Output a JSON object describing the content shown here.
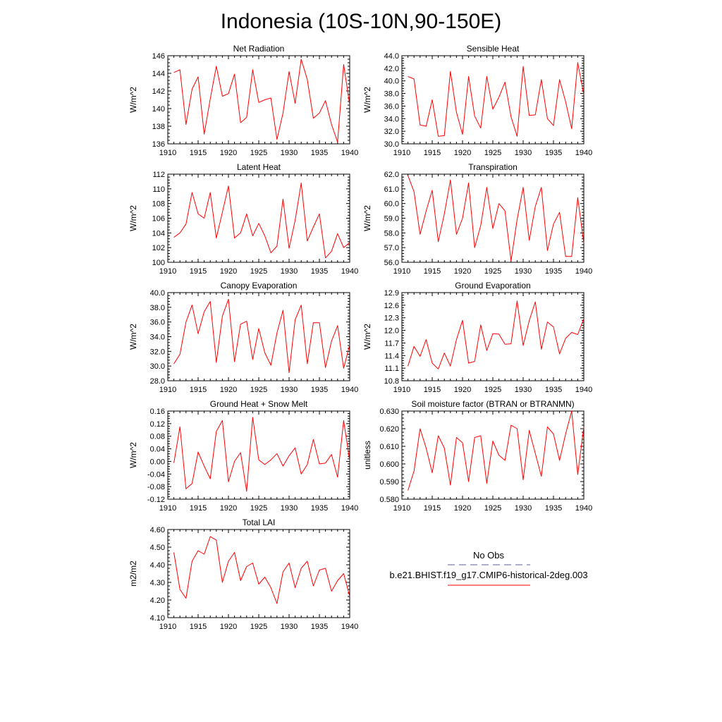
{
  "title": "Indonesia (10S-10N,90-150E)",
  "colors": {
    "series": "#ff0000",
    "obs": "#5a5a9a",
    "axis": "#000000"
  },
  "legend": {
    "obs_label": "No Obs",
    "model_label": "b.e21.BHIST.f19_g17.CMIP6-historical-2deg.003"
  },
  "chart_data": [
    {
      "type": "line",
      "title": "Net Radiation",
      "ylabel": "W/m^2",
      "xlim": [
        1910,
        1940
      ],
      "ylim": [
        136,
        146
      ],
      "decimals": 0,
      "xticks": [
        1910,
        1915,
        1920,
        1925,
        1930,
        1935,
        1940
      ],
      "yticks": [
        136,
        138,
        140,
        142,
        144,
        146
      ],
      "x": [
        1911,
        1912,
        1913,
        1914,
        1915,
        1916,
        1917,
        1918,
        1919,
        1920,
        1921,
        1922,
        1923,
        1924,
        1925,
        1926,
        1927,
        1928,
        1929,
        1930,
        1931,
        1932,
        1933,
        1934,
        1935,
        1936,
        1937,
        1938,
        1939,
        1940
      ],
      "values": [
        144.1,
        144.4,
        138.2,
        142.2,
        143.6,
        137.1,
        141.1,
        144.8,
        141.4,
        141.7,
        143.9,
        138.4,
        139.0,
        144.4,
        140.7,
        141.0,
        141.2,
        136.5,
        139.5,
        144.2,
        140.6,
        145.6,
        143.3,
        138.9,
        139.5,
        140.9,
        138.2,
        136.2,
        145.0,
        140.4
      ],
      "series": [
        {
          "name": "b.e21.BHIST.f19_g17.CMIP6-historical-2deg.003"
        }
      ]
    },
    {
      "type": "line",
      "title": "Sensible Heat",
      "ylabel": "W/m^2",
      "xlim": [
        1910,
        1940
      ],
      "ylim": [
        30,
        44
      ],
      "decimals": 1,
      "xticks": [
        1910,
        1915,
        1920,
        1925,
        1930,
        1935,
        1940
      ],
      "yticks": [
        30,
        32,
        34,
        36,
        38,
        40,
        42,
        44
      ],
      "x": [
        1911,
        1912,
        1913,
        1914,
        1915,
        1916,
        1917,
        1918,
        1919,
        1920,
        1921,
        1922,
        1923,
        1924,
        1925,
        1926,
        1927,
        1928,
        1929,
        1930,
        1931,
        1932,
        1933,
        1934,
        1935,
        1936,
        1937,
        1938,
        1939,
        1940
      ],
      "values": [
        40.7,
        40.3,
        33.0,
        32.8,
        37.0,
        31.2,
        31.3,
        41.5,
        35.0,
        31.5,
        40.7,
        34.4,
        32.5,
        40.7,
        35.5,
        37.4,
        39.8,
        34.3,
        31.2,
        42.3,
        34.5,
        34.6,
        40.2,
        34.0,
        32.9,
        40.2,
        36.7,
        32.4,
        42.9,
        37.8
      ],
      "series": [
        {
          "name": "b.e21.BHIST.f19_g17.CMIP6-historical-2deg.003"
        }
      ]
    },
    {
      "type": "line",
      "title": "Latent Heat",
      "ylabel": "W/m^2",
      "xlim": [
        1910,
        1940
      ],
      "ylim": [
        100,
        112
      ],
      "decimals": 0,
      "xticks": [
        1910,
        1915,
        1920,
        1925,
        1930,
        1935,
        1940
      ],
      "yticks": [
        100,
        102,
        104,
        106,
        108,
        110,
        112
      ],
      "x": [
        1911,
        1912,
        1913,
        1914,
        1915,
        1916,
        1917,
        1918,
        1919,
        1920,
        1921,
        1922,
        1923,
        1924,
        1925,
        1926,
        1927,
        1928,
        1929,
        1930,
        1931,
        1932,
        1933,
        1934,
        1935,
        1936,
        1937,
        1938,
        1939,
        1940
      ],
      "values": [
        103.4,
        104.0,
        105.2,
        109.5,
        106.6,
        106.0,
        109.5,
        103.3,
        106.8,
        110.4,
        103.3,
        104.0,
        106.6,
        103.6,
        105.3,
        103.6,
        101.3,
        102.2,
        108.6,
        101.9,
        105.7,
        110.8,
        102.9,
        104.8,
        106.6,
        100.6,
        101.5,
        103.9,
        102.0,
        102.7
      ],
      "series": [
        {
          "name": "b.e21.BHIST.f19_g17.CMIP6-historical-2deg.003"
        }
      ]
    },
    {
      "type": "line",
      "title": "Transpiration",
      "ylabel": "W/m^2",
      "xlim": [
        1910,
        1940
      ],
      "ylim": [
        56,
        62
      ],
      "decimals": 1,
      "xticks": [
        1910,
        1915,
        1920,
        1925,
        1930,
        1935,
        1940
      ],
      "yticks": [
        56,
        57,
        58,
        59,
        60,
        61,
        62
      ],
      "x": [
        1911,
        1912,
        1913,
        1914,
        1915,
        1916,
        1917,
        1918,
        1919,
        1920,
        1921,
        1922,
        1923,
        1924,
        1925,
        1926,
        1927,
        1928,
        1929,
        1930,
        1931,
        1932,
        1933,
        1934,
        1935,
        1936,
        1937,
        1938,
        1939,
        1940
      ],
      "values": [
        61.9,
        60.8,
        57.9,
        59.5,
        60.9,
        57.4,
        59.3,
        61.6,
        57.9,
        59.0,
        61.4,
        57.0,
        58.5,
        61.1,
        58.3,
        60.0,
        59.5,
        56.1,
        58.9,
        61.1,
        57.5,
        59.8,
        61.1,
        56.8,
        58.6,
        59.4,
        56.4,
        56.4,
        60.4,
        57.3
      ],
      "series": [
        {
          "name": "b.e21.BHIST.f19_g17.CMIP6-historical-2deg.003"
        }
      ]
    },
    {
      "type": "line",
      "title": "Canopy Evaporation",
      "ylabel": "W/m^2",
      "xlim": [
        1910,
        1940
      ],
      "ylim": [
        28,
        40
      ],
      "decimals": 1,
      "xticks": [
        1910,
        1915,
        1920,
        1925,
        1930,
        1935,
        1940
      ],
      "yticks": [
        28,
        30,
        32,
        34,
        36,
        38,
        40
      ],
      "x": [
        1911,
        1912,
        1913,
        1914,
        1915,
        1916,
        1917,
        1918,
        1919,
        1920,
        1921,
        1922,
        1923,
        1924,
        1925,
        1926,
        1927,
        1928,
        1929,
        1930,
        1931,
        1932,
        1933,
        1934,
        1935,
        1936,
        1937,
        1938,
        1939,
        1940
      ],
      "values": [
        30.3,
        31.6,
        36.0,
        38.3,
        34.4,
        37.4,
        38.8,
        30.5,
        36.8,
        39.1,
        30.6,
        35.7,
        36.1,
        30.9,
        35.1,
        31.8,
        30.1,
        34.5,
        37.6,
        29.1,
        36.3,
        38.3,
        30.3,
        35.9,
        35.9,
        29.8,
        33.4,
        35.5,
        29.7,
        32.9
      ],
      "series": [
        {
          "name": "b.e21.BHIST.f19_g17.CMIP6-historical-2deg.003"
        }
      ]
    },
    {
      "type": "line",
      "title": "Ground Evaporation",
      "ylabel": "W/m^2",
      "xlim": [
        1910,
        1940
      ],
      "ylim": [
        10.8,
        12.9
      ],
      "decimals": 1,
      "xticks": [
        1910,
        1915,
        1920,
        1925,
        1930,
        1935,
        1940
      ],
      "yticks": [
        10.8,
        11.1,
        11.4,
        11.7,
        12.0,
        12.3,
        12.6,
        12.9
      ],
      "x": [
        1911,
        1912,
        1913,
        1914,
        1915,
        1916,
        1917,
        1918,
        1919,
        1920,
        1921,
        1922,
        1923,
        1924,
        1925,
        1926,
        1927,
        1928,
        1929,
        1930,
        1931,
        1932,
        1933,
        1934,
        1935,
        1936,
        1937,
        1938,
        1939,
        1940
      ],
      "values": [
        11.15,
        11.62,
        11.38,
        11.78,
        11.22,
        11.08,
        11.46,
        11.15,
        11.78,
        12.24,
        11.22,
        11.26,
        12.13,
        11.52,
        11.92,
        11.91,
        11.67,
        11.68,
        12.7,
        11.64,
        12.23,
        12.68,
        11.55,
        12.2,
        12.08,
        11.44,
        11.81,
        11.95,
        11.9,
        12.28
      ],
      "series": [
        {
          "name": "b.e21.BHIST.f19_g17.CMIP6-historical-2deg.003"
        }
      ]
    },
    {
      "type": "line",
      "title": "Ground Heat + Snow Melt",
      "ylabel": "W/m^2",
      "xlim": [
        1910,
        1940
      ],
      "ylim": [
        -0.12,
        0.16
      ],
      "decimals": 2,
      "xticks": [
        1910,
        1915,
        1920,
        1925,
        1930,
        1935,
        1940
      ],
      "yticks": [
        -0.12,
        -0.08,
        -0.04,
        0.0,
        0.04,
        0.08,
        0.12,
        0.16
      ],
      "x": [
        1911,
        1912,
        1913,
        1914,
        1915,
        1916,
        1917,
        1918,
        1919,
        1920,
        1921,
        1922,
        1923,
        1924,
        1925,
        1926,
        1927,
        1928,
        1929,
        1930,
        1931,
        1932,
        1933,
        1934,
        1935,
        1936,
        1937,
        1938,
        1939,
        1940
      ],
      "values": [
        -0.005,
        0.11,
        -0.087,
        -0.07,
        0.03,
        -0.015,
        -0.055,
        0.095,
        0.13,
        -0.065,
        0.0,
        0.028,
        -0.095,
        0.14,
        0.005,
        -0.01,
        0.005,
        0.025,
        -0.015,
        0.018,
        0.043,
        -0.04,
        -0.01,
        0.07,
        -0.008,
        -0.005,
        0.022,
        -0.05,
        0.13,
        0.002
      ],
      "series": [
        {
          "name": "b.e21.BHIST.f19_g17.CMIP6-historical-2deg.003"
        }
      ]
    },
    {
      "type": "line",
      "title": "Soil moisture factor (BTRAN or BTRANMN)",
      "ylabel": "unitless",
      "xlim": [
        1910,
        1940
      ],
      "ylim": [
        0.58,
        0.63
      ],
      "decimals": 3,
      "xticks": [
        1910,
        1915,
        1920,
        1925,
        1930,
        1935,
        1940
      ],
      "yticks": [
        0.58,
        0.59,
        0.6,
        0.61,
        0.62,
        0.63
      ],
      "x": [
        1911,
        1912,
        1913,
        1914,
        1915,
        1916,
        1917,
        1918,
        1919,
        1920,
        1921,
        1922,
        1923,
        1924,
        1925,
        1926,
        1927,
        1928,
        1929,
        1930,
        1931,
        1932,
        1933,
        1934,
        1935,
        1936,
        1937,
        1938,
        1939,
        1940
      ],
      "values": [
        0.585,
        0.596,
        0.62,
        0.609,
        0.595,
        0.616,
        0.609,
        0.588,
        0.615,
        0.612,
        0.59,
        0.615,
        0.616,
        0.589,
        0.613,
        0.605,
        0.602,
        0.622,
        0.62,
        0.591,
        0.619,
        0.606,
        0.593,
        0.621,
        0.617,
        0.602,
        0.617,
        0.63,
        0.594,
        0.621
      ],
      "series": [
        {
          "name": "b.e21.BHIST.f19_g17.CMIP6-historical-2deg.003"
        }
      ]
    },
    {
      "type": "line",
      "title": "Total LAI",
      "ylabel": "m2/m2",
      "xlim": [
        1910,
        1940
      ],
      "ylim": [
        4.1,
        4.6
      ],
      "decimals": 2,
      "xticks": [
        1910,
        1915,
        1920,
        1925,
        1930,
        1935,
        1940
      ],
      "yticks": [
        4.1,
        4.2,
        4.3,
        4.4,
        4.5,
        4.6
      ],
      "x": [
        1911,
        1912,
        1913,
        1914,
        1915,
        1916,
        1917,
        1918,
        1919,
        1920,
        1921,
        1922,
        1923,
        1924,
        1925,
        1926,
        1927,
        1928,
        1929,
        1930,
        1931,
        1932,
        1933,
        1934,
        1935,
        1936,
        1937,
        1938,
        1939,
        1940
      ],
      "values": [
        4.47,
        4.26,
        4.21,
        4.42,
        4.48,
        4.46,
        4.56,
        4.54,
        4.3,
        4.42,
        4.47,
        4.31,
        4.39,
        4.41,
        4.29,
        4.33,
        4.27,
        4.18,
        4.36,
        4.41,
        4.27,
        4.38,
        4.42,
        4.28,
        4.37,
        4.38,
        4.25,
        4.31,
        4.35,
        4.22
      ],
      "series": [
        {
          "name": "b.e21.BHIST.f19_g17.CMIP6-historical-2deg.003"
        }
      ]
    }
  ]
}
